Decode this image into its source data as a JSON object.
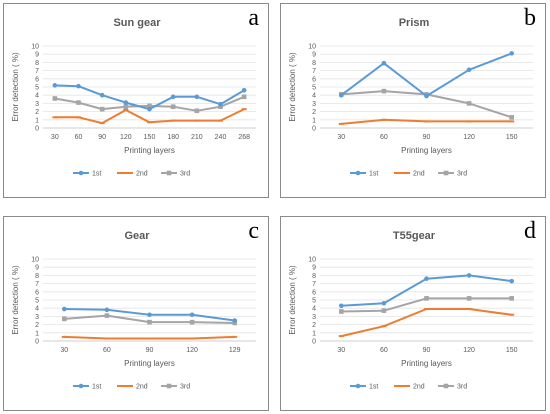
{
  "chart_data": [
    {
      "type": "line",
      "panel_letter": "a",
      "title": "Sun gear",
      "xlabel": "Printing layers",
      "ylabel": "Error detection ( %)",
      "categories": [
        "30",
        "60",
        "90",
        "120",
        "150",
        "180",
        "210",
        "240",
        "268"
      ],
      "ylim": [
        0,
        10
      ],
      "yticks": [
        "0",
        "1",
        "2",
        "3",
        "4",
        "5",
        "6",
        "7",
        "8",
        "9",
        "10"
      ],
      "grid": true,
      "legend_position": "bottom",
      "series": [
        {
          "name": "1st",
          "color": "#5b9bd5",
          "values": [
            5.2,
            5.1,
            4.0,
            3.1,
            2.3,
            3.8,
            3.8,
            2.9,
            4.6
          ]
        },
        {
          "name": "2nd",
          "color": "#ed7d31",
          "values": [
            1.3,
            1.3,
            0.6,
            2.2,
            0.7,
            0.9,
            0.9,
            0.9,
            2.3
          ]
        },
        {
          "name": "3rd",
          "color": "#a5a5a5",
          "values": [
            3.6,
            3.1,
            2.3,
            2.6,
            2.7,
            2.6,
            2.1,
            2.6,
            3.8
          ]
        }
      ]
    },
    {
      "type": "line",
      "panel_letter": "b",
      "title": "Prism",
      "xlabel": "Printing layers",
      "ylabel": "Error detection ( %)",
      "categories": [
        "30",
        "60",
        "90",
        "120",
        "150"
      ],
      "ylim": [
        0,
        10
      ],
      "yticks": [
        "0",
        "1",
        "2",
        "3",
        "4",
        "5",
        "6",
        "7",
        "8",
        "9",
        "10"
      ],
      "grid": true,
      "legend_position": "bottom",
      "series": [
        {
          "name": "1st",
          "color": "#5b9bd5",
          "values": [
            4.0,
            7.9,
            3.9,
            7.1,
            9.1
          ]
        },
        {
          "name": "2nd",
          "color": "#ed7d31",
          "values": [
            0.5,
            1.0,
            0.8,
            0.8,
            0.8
          ]
        },
        {
          "name": "3rd",
          "color": "#a5a5a5",
          "values": [
            4.1,
            4.5,
            4.1,
            3.0,
            1.3
          ]
        }
      ]
    },
    {
      "type": "line",
      "panel_letter": "c",
      "title": "Gear",
      "xlabel": "Printing layers",
      "ylabel": "Error detection ( %)",
      "categories": [
        "30",
        "60",
        "90",
        "120",
        "129"
      ],
      "ylim": [
        0,
        10
      ],
      "yticks": [
        "0",
        "1",
        "2",
        "3",
        "4",
        "5",
        "6",
        "7",
        "8",
        "9",
        "10"
      ],
      "grid": true,
      "legend_position": "bottom",
      "series": [
        {
          "name": "1st",
          "color": "#5b9bd5",
          "values": [
            3.9,
            3.8,
            3.2,
            3.2,
            2.5
          ]
        },
        {
          "name": "2nd",
          "color": "#ed7d31",
          "values": [
            0.5,
            0.3,
            0.3,
            0.3,
            0.5
          ]
        },
        {
          "name": "3rd",
          "color": "#a5a5a5",
          "values": [
            2.7,
            3.1,
            2.3,
            2.3,
            2.2
          ]
        }
      ]
    },
    {
      "type": "line",
      "panel_letter": "d",
      "title": "T55gear",
      "xlabel": "Printing layers",
      "ylabel": "Error detection ( %)",
      "categories": [
        "30",
        "60",
        "90",
        "120",
        "150"
      ],
      "ylim": [
        0,
        10
      ],
      "yticks": [
        "0",
        "1",
        "2",
        "3",
        "4",
        "5",
        "6",
        "7",
        "8",
        "9",
        "10"
      ],
      "grid": true,
      "legend_position": "bottom",
      "series": [
        {
          "name": "1st",
          "color": "#5b9bd5",
          "values": [
            4.3,
            4.6,
            7.6,
            8.0,
            7.3
          ]
        },
        {
          "name": "2nd",
          "color": "#ed7d31",
          "values": [
            0.6,
            1.8,
            3.9,
            3.9,
            3.2
          ]
        },
        {
          "name": "3rd",
          "color": "#a5a5a5",
          "values": [
            3.6,
            3.7,
            5.2,
            5.2,
            5.2
          ]
        }
      ]
    }
  ]
}
